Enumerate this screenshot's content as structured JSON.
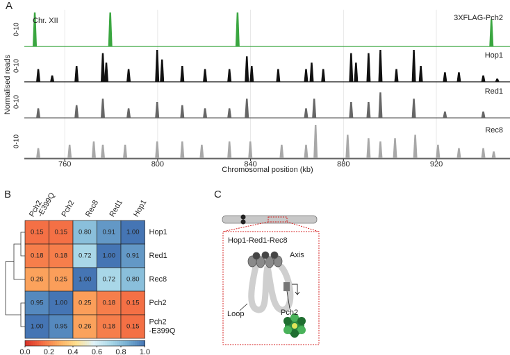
{
  "panel_labels": [
    "A",
    "B",
    "C"
  ],
  "chart_data": [
    {
      "type": "track",
      "annotation": "Chr. XII",
      "x_label": "Chromosomal position (kb)",
      "y_label": "Normalised reads",
      "xlim": [
        742.6,
        951.7
      ],
      "xticks": [
        760,
        800,
        840,
        880,
        920
      ],
      "ylim": [
        0,
        10
      ],
      "grid": true,
      "series": [
        {
          "name": "3XFLAG-Pch2",
          "color": "#3aa640",
          "range_label": "0-10",
          "x": [
            747.1,
            779.6,
            834.4,
            943.7
          ],
          "values": [
            10,
            10,
            10,
            8
          ]
        },
        {
          "name": "Hop1",
          "color": "#111111",
          "range_label": "0-10",
          "x": [
            748.6,
            754.6,
            765.1,
            776.4,
            777.9,
            787.5,
            799.8,
            801.9,
            810.6,
            820.4,
            830.9,
            838.4,
            840.5,
            851.9,
            863.9,
            866.3,
            871.3,
            883.3,
            885.4,
            890.8,
            895.9,
            902.8,
            910.3,
            913.3,
            923.7,
            929.7,
            940.2,
            946.2
          ],
          "values": [
            4,
            2,
            5,
            9,
            6,
            4,
            10,
            7,
            5,
            4,
            4,
            8,
            5,
            4,
            4,
            6,
            4,
            9,
            6,
            9,
            10,
            4,
            10,
            5,
            3,
            3,
            2,
            1
          ]
        },
        {
          "name": "Red1",
          "color": "#666666",
          "range_label": "0-10",
          "x": [
            748.6,
            765.1,
            776.4,
            787.5,
            799.8,
            810.6,
            820.4,
            830.9,
            838.4,
            863.9,
            867.4,
            883.3,
            890.8,
            895.9,
            910.3,
            923.7,
            940.2
          ],
          "values": [
            3,
            4,
            6,
            3,
            5,
            4,
            3,
            3,
            6,
            3,
            6,
            5,
            5,
            8,
            6,
            2,
            2
          ]
        },
        {
          "name": "Rec8",
          "color": "#a8a8a8",
          "range_label": "0-10",
          "x": [
            748.6,
            762.1,
            772.5,
            776.4,
            786.0,
            799.8,
            810.6,
            819.0,
            830.9,
            839.9,
            853.4,
            863.9,
            868.0,
            881.8,
            890.8,
            895.9,
            902.2,
            910.9,
            920.7,
            929.7,
            940.2,
            944.7
          ],
          "values": [
            3,
            4,
            5,
            4,
            4,
            5,
            5,
            4,
            5,
            5,
            4,
            4,
            10,
            7,
            6,
            5,
            6,
            7,
            4,
            3,
            3,
            2
          ]
        }
      ]
    },
    {
      "type": "heatmap",
      "columns": [
        [
          "Pch2",
          "-E399Q"
        ],
        [
          "Pch2"
        ],
        [
          "Rec8"
        ],
        [
          "Red1"
        ],
        [
          "Hop1"
        ]
      ],
      "rows": [
        [
          "Hop1"
        ],
        [
          "Red1"
        ],
        [
          "Rec8"
        ],
        [
          "Pch2"
        ],
        [
          "Pch2",
          "-E399Q"
        ]
      ],
      "values": [
        [
          0.15,
          0.15,
          0.8,
          0.91,
          1.0
        ],
        [
          0.18,
          0.18,
          0.72,
          1.0,
          0.91
        ],
        [
          0.26,
          0.25,
          1.0,
          0.72,
          0.8
        ],
        [
          0.95,
          1.0,
          0.25,
          0.18,
          0.15
        ],
        [
          1.0,
          0.95,
          0.26,
          0.18,
          0.15
        ]
      ],
      "value_labels": [
        [
          "0.15",
          "0.15",
          "0.80",
          "0.91",
          "1.00"
        ],
        [
          "0.18",
          "0.18",
          "0.72",
          "1.00",
          "0.91"
        ],
        [
          "0.26",
          "0.25",
          "1.00",
          "0.72",
          "0.80"
        ],
        [
          "0.95",
          "1.00",
          "0.25",
          "0.18",
          "0.15"
        ],
        [
          "1.00",
          "0.95",
          "0.26",
          "0.18",
          "0.15"
        ]
      ],
      "zlim": [
        0,
        1
      ],
      "colorbar_ticks": [
        {
          "value": 0,
          "label": "0.0"
        },
        0.2,
        0.4,
        0.6,
        0.8,
        {
          "value": 1,
          "label": "1.0"
        }
      ],
      "colormap": [
        "#d73027",
        "#f46d43",
        "#fdae61",
        "#fee090",
        "#e0f3f8",
        "#abd9e9",
        "#74add1",
        "#4575b4"
      ]
    }
  ],
  "diagram": {
    "axis_proteins": "Hop1-Red1-Rec8",
    "axis": "Axis",
    "loop": "Loop",
    "pch2": "Pch2"
  }
}
